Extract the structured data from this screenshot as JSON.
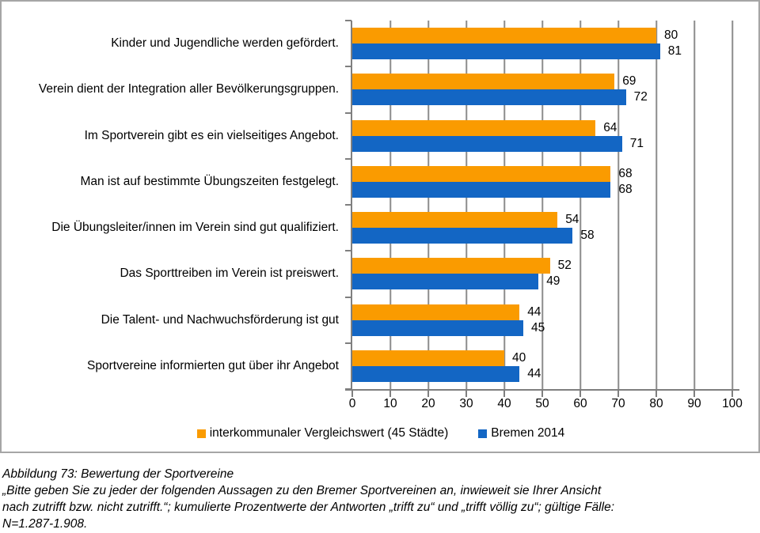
{
  "chart_data": {
    "type": "bar",
    "orientation": "horizontal",
    "title": "",
    "categories": [
      "Kinder und Jugendliche werden gefördert.",
      "Verein dient der Integration aller Bevölkerungsgruppen.",
      "Im Sportverein gibt es ein vielseitiges Angebot.",
      "Man ist auf bestimmte Übungszeiten festgelegt.",
      "Die Übungsleiter/innen im Verein sind gut qualifiziert.",
      "Das Sporttreiben im Verein ist preiswert.",
      "Die Talent- und Nachwuchsförderung ist gut",
      "Sportvereine informierten gut über ihr Angebot"
    ],
    "series": [
      {
        "name": "interkommunaler Vergleichswert (45 Städte)",
        "color": "#FA9B00",
        "values": [
          80,
          69,
          64,
          68,
          54,
          52,
          44,
          40
        ]
      },
      {
        "name": "Bremen 2014",
        "color": "#1366C4",
        "values": [
          81,
          72,
          71,
          68,
          58,
          49,
          45,
          44
        ]
      }
    ],
    "xlim": [
      0,
      100
    ],
    "xticks": [
      0,
      10,
      20,
      30,
      40,
      50,
      60,
      70,
      80,
      90,
      100
    ],
    "grid": "vertical",
    "legend_position": "bottom",
    "value_labels": "at end of each bar"
  },
  "caption": {
    "lines": [
      "Abbildung 73: Bewertung der Sportvereine",
      "„Bitte geben Sie zu jeder der folgenden Aussagen zu den Bremer Sportvereinen an, inwieweit sie Ihrer Ansicht",
      "nach zutrifft bzw. nicht zutrifft.“; kumulierte Prozentwerte der Antworten „trifft zu“ und „trifft völlig zu“; gültige Fälle:",
      "N=1.287-1.908."
    ]
  },
  "colors": {
    "orange": "#FA9B00",
    "blue": "#1366C4",
    "gridline": "#8C8C8C",
    "axis": "#7F7F7F",
    "frame_border": "#A6A6A6"
  }
}
